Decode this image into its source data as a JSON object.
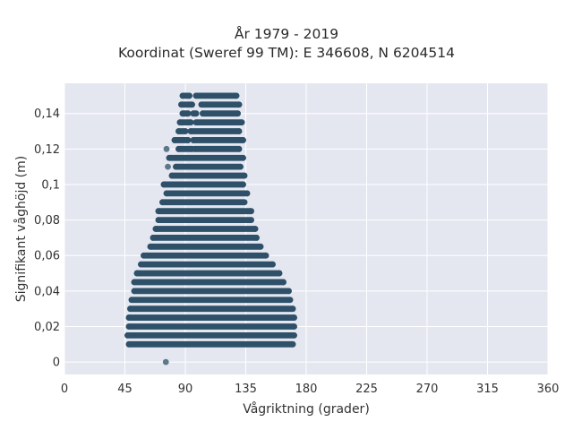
{
  "chart_data": {
    "type": "scatter",
    "title": "År 1979 - 2019",
    "subtitle": "Koordinat (Sweref 99 TM): E 346608, N 6204514",
    "xlabel": "Vågriktning (grader)",
    "ylabel": "Signifikant våghöjd (m)",
    "xlim": [
      0,
      360
    ],
    "ylim": [
      -0.007,
      0.157
    ],
    "xticks": [
      0,
      45,
      90,
      135,
      180,
      225,
      270,
      315,
      360
    ],
    "xtick_labels": [
      "0",
      "45",
      "90",
      "135",
      "180",
      "225",
      "270",
      "315",
      "360"
    ],
    "yticks": [
      0,
      0.02,
      0.04,
      0.06,
      0.08,
      0.1,
      0.12,
      0.14
    ],
    "ytick_labels": [
      "0",
      "0,02",
      "0,04",
      "0,06",
      "0,08",
      "0,1",
      "0,12",
      "0,14"
    ],
    "grid": true,
    "marker_color": "#2e5068",
    "background_color": "#e5e7f0",
    "bands": [
      {
        "y": 0.15,
        "segments": [
          [
            88,
            93
          ],
          [
            98,
            128
          ]
        ]
      },
      {
        "y": 0.145,
        "segments": [
          [
            87,
            95
          ],
          [
            102,
            130
          ]
        ]
      },
      {
        "y": 0.14,
        "segments": [
          [
            88,
            92
          ],
          [
            96,
            98
          ],
          [
            103,
            129
          ]
        ]
      },
      {
        "y": 0.135,
        "segments": [
          [
            86,
            94
          ],
          [
            98,
            132
          ]
        ]
      },
      {
        "y": 0.13,
        "segments": [
          [
            85,
            90
          ],
          [
            94,
            130
          ]
        ]
      },
      {
        "y": 0.125,
        "segments": [
          [
            82,
            92
          ],
          [
            96,
            133
          ]
        ]
      },
      {
        "y": 0.12,
        "segments": [
          [
            85,
            95
          ],
          [
            97,
            130
          ]
        ]
      },
      {
        "y": 0.115,
        "segments": [
          [
            78,
            133
          ]
        ]
      },
      {
        "y": 0.11,
        "segments": [
          [
            83,
            131
          ]
        ]
      },
      {
        "y": 0.105,
        "segments": [
          [
            80,
            134
          ]
        ]
      },
      {
        "y": 0.1,
        "segments": [
          [
            74,
            133
          ]
        ]
      },
      {
        "y": 0.095,
        "segments": [
          [
            76,
            136
          ]
        ]
      },
      {
        "y": 0.09,
        "segments": [
          [
            73,
            134
          ]
        ]
      },
      {
        "y": 0.085,
        "segments": [
          [
            70,
            139
          ]
        ]
      },
      {
        "y": 0.08,
        "segments": [
          [
            70,
            139
          ]
        ]
      },
      {
        "y": 0.075,
        "segments": [
          [
            68,
            142
          ]
        ]
      },
      {
        "y": 0.07,
        "segments": [
          [
            66,
            143
          ]
        ]
      },
      {
        "y": 0.065,
        "segments": [
          [
            64,
            146
          ]
        ]
      },
      {
        "y": 0.06,
        "segments": [
          [
            59,
            150
          ]
        ]
      },
      {
        "y": 0.055,
        "segments": [
          [
            57,
            155
          ]
        ]
      },
      {
        "y": 0.05,
        "segments": [
          [
            54,
            160
          ]
        ]
      },
      {
        "y": 0.045,
        "segments": [
          [
            52,
            163
          ]
        ]
      },
      {
        "y": 0.04,
        "segments": [
          [
            52,
            167
          ]
        ]
      },
      {
        "y": 0.035,
        "segments": [
          [
            50,
            168
          ]
        ]
      },
      {
        "y": 0.03,
        "segments": [
          [
            49,
            170
          ]
        ]
      },
      {
        "y": 0.025,
        "segments": [
          [
            48,
            171
          ]
        ]
      },
      {
        "y": 0.02,
        "segments": [
          [
            48,
            171
          ]
        ]
      },
      {
        "y": 0.015,
        "segments": [
          [
            47,
            171
          ]
        ]
      },
      {
        "y": 0.01,
        "segments": [
          [
            48,
            170
          ]
        ]
      }
    ],
    "points": [
      {
        "x": 76,
        "y": 0.12
      },
      {
        "x": 77,
        "y": 0.11
      },
      {
        "x": 75.5,
        "y": 0
      }
    ]
  }
}
